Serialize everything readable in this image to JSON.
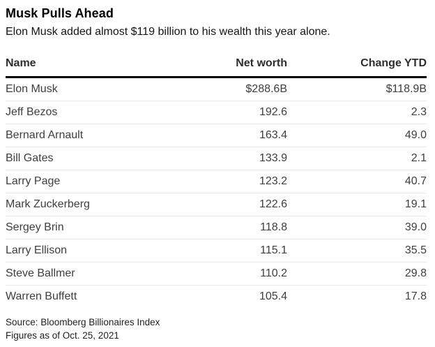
{
  "header": {
    "title": "Musk Pulls Ahead",
    "subtitle": "Elon Musk added almost $119 billion to his wealth this year alone."
  },
  "table": {
    "columns": [
      "Name",
      "Net worth",
      "Change YTD"
    ],
    "rows": [
      {
        "name": "Elon Musk",
        "net_worth": "$288.6B",
        "change_ytd": "$118.9B"
      },
      {
        "name": "Jeff Bezos",
        "net_worth": "192.6",
        "change_ytd": "2.3"
      },
      {
        "name": "Bernard Arnault",
        "net_worth": "163.4",
        "change_ytd": "49.0"
      },
      {
        "name": "Bill Gates",
        "net_worth": "133.9",
        "change_ytd": "2.1"
      },
      {
        "name": "Larry Page",
        "net_worth": "123.2",
        "change_ytd": "40.7"
      },
      {
        "name": "Mark Zuckerberg",
        "net_worth": "122.6",
        "change_ytd": "19.1"
      },
      {
        "name": "Sergey Brin",
        "net_worth": "118.8",
        "change_ytd": "39.0"
      },
      {
        "name": "Larry Ellison",
        "net_worth": "115.1",
        "change_ytd": "35.5"
      },
      {
        "name": "Steve Ballmer",
        "net_worth": "110.2",
        "change_ytd": "29.8"
      },
      {
        "name": "Warren Buffett",
        "net_worth": "105.4",
        "change_ytd": "17.8"
      }
    ]
  },
  "footer": {
    "source": "Source: Bloomberg Billionaires Index",
    "as_of": "Figures as of Oct. 25, 2021"
  },
  "colors": {
    "background": "#ffffff",
    "title_text": "#000000",
    "subtitle_text": "#141414",
    "header_text": "#2e2e2e",
    "cell_text": "#3e3e3e",
    "header_rule": "#000000",
    "row_rule": "#e9e9e6",
    "footer_text": "#1f1f1f"
  },
  "chart_data": {
    "type": "table",
    "title": "Musk Pulls Ahead",
    "subtitle": "Elon Musk added almost $119 billion to his wealth this year alone.",
    "columns": [
      "Name",
      "Net worth",
      "Change YTD"
    ],
    "units": "billions of USD",
    "rows": [
      [
        "Elon Musk",
        288.6,
        118.9
      ],
      [
        "Jeff Bezos",
        192.6,
        2.3
      ],
      [
        "Bernard Arnault",
        163.4,
        49.0
      ],
      [
        "Bill Gates",
        133.9,
        2.1
      ],
      [
        "Larry Page",
        123.2,
        40.7
      ],
      [
        "Mark Zuckerberg",
        122.6,
        19.1
      ],
      [
        "Sergey Brin",
        118.8,
        39.0
      ],
      [
        "Larry Ellison",
        115.1,
        35.5
      ],
      [
        "Steve Ballmer",
        110.2,
        29.8
      ],
      [
        "Warren Buffett",
        105.4,
        17.8
      ]
    ],
    "source": "Bloomberg Billionaires Index",
    "as_of": "Oct. 25, 2021"
  }
}
